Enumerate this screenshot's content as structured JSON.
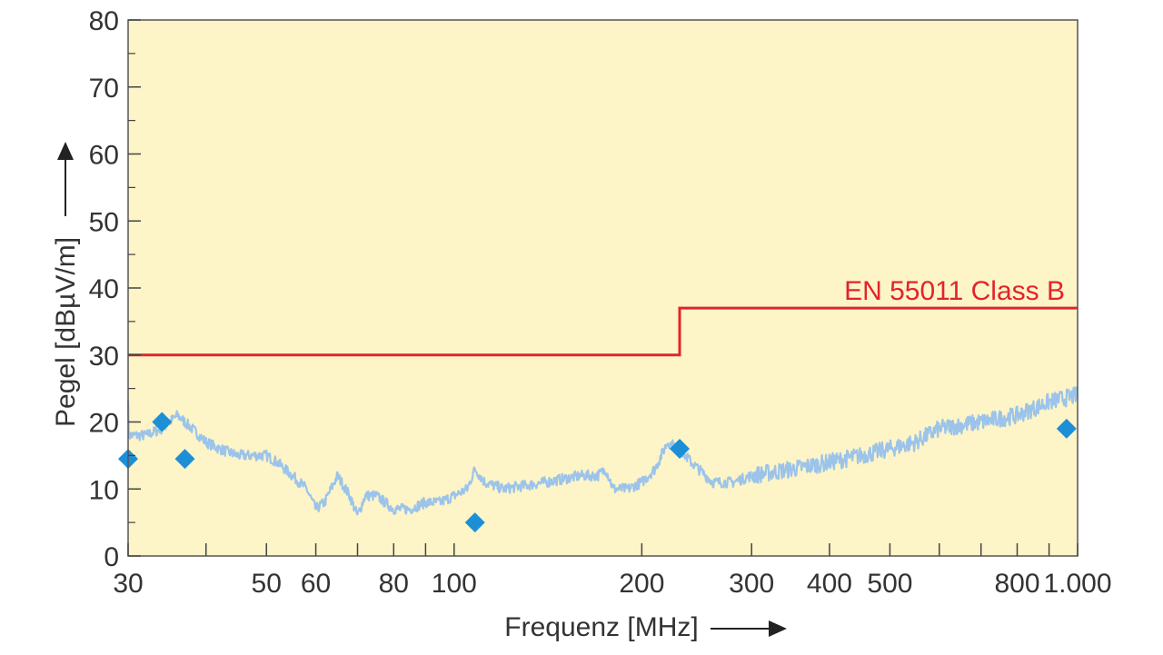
{
  "chart_data": {
    "type": "line",
    "xlabel": "Frequenz [MHz]",
    "ylabel": "Pegel [dBµV/m]",
    "x_scale": "log",
    "xlim": [
      30,
      1000
    ],
    "ylim": [
      0,
      80
    ],
    "yticks": [
      0,
      10,
      20,
      30,
      40,
      50,
      60,
      70,
      80
    ],
    "y_minor_ticks": [
      5,
      15,
      25,
      35,
      45,
      55,
      65,
      75
    ],
    "xticks": [
      {
        "value": 30,
        "label": "30"
      },
      {
        "value": 40,
        "label": ""
      },
      {
        "value": 50,
        "label": "50"
      },
      {
        "value": 60,
        "label": "60"
      },
      {
        "value": 70,
        "label": ""
      },
      {
        "value": 80,
        "label": "80"
      },
      {
        "value": 90,
        "label": ""
      },
      {
        "value": 100,
        "label": "100"
      },
      {
        "value": 200,
        "label": "200"
      },
      {
        "value": 300,
        "label": "300"
      },
      {
        "value": 400,
        "label": "400"
      },
      {
        "value": 500,
        "label": "500"
      },
      {
        "value": 600,
        "label": ""
      },
      {
        "value": 700,
        "label": ""
      },
      {
        "value": 800,
        "label": "800"
      },
      {
        "value": 900,
        "label": ""
      },
      {
        "value": 1000,
        "label": "1.000"
      }
    ],
    "background_color": "#fdf4c8",
    "grid": false,
    "series": [
      {
        "name": "",
        "kind": "noisy-line",
        "color": "#9cc4ea",
        "x": [
          30,
          32,
          34,
          36,
          38,
          40,
          42,
          45,
          48,
          50,
          52,
          55,
          58,
          60,
          62,
          65,
          68,
          70,
          72,
          75,
          80,
          85,
          90,
          95,
          100,
          105,
          108,
          112,
          120,
          140,
          160,
          170,
          175,
          180,
          190,
          200,
          210,
          220,
          230,
          240,
          260,
          280,
          300,
          350,
          400,
          450,
          500,
          550,
          600,
          700,
          800,
          900,
          1000
        ],
        "y": [
          18,
          18,
          19,
          21,
          19,
          17,
          16,
          15,
          15,
          15,
          14,
          12,
          10,
          7,
          8,
          12,
          9,
          6,
          9,
          9,
          7,
          7,
          8,
          8,
          9,
          10,
          13,
          11,
          10,
          11,
          12,
          12,
          13,
          10,
          10,
          11,
          13,
          17,
          16,
          14,
          11,
          11,
          12,
          13,
          14,
          15,
          16,
          17,
          19,
          20,
          21,
          23,
          24
        ]
      },
      {
        "name": "EN 55011 Class B",
        "kind": "step",
        "color": "#e2242b",
        "x": [
          30,
          230,
          230,
          1000
        ],
        "y": [
          30,
          30,
          37,
          37
        ]
      },
      {
        "name": "",
        "kind": "points",
        "marker": "diamond",
        "color": "#1d8fd6",
        "x": [
          30,
          34,
          37,
          108,
          230,
          960
        ],
        "y": [
          14.5,
          20,
          14.5,
          5,
          16,
          19
        ]
      }
    ],
    "annotations": [
      {
        "text": "EN 55011 Class B",
        "color": "#e2242b"
      }
    ]
  }
}
